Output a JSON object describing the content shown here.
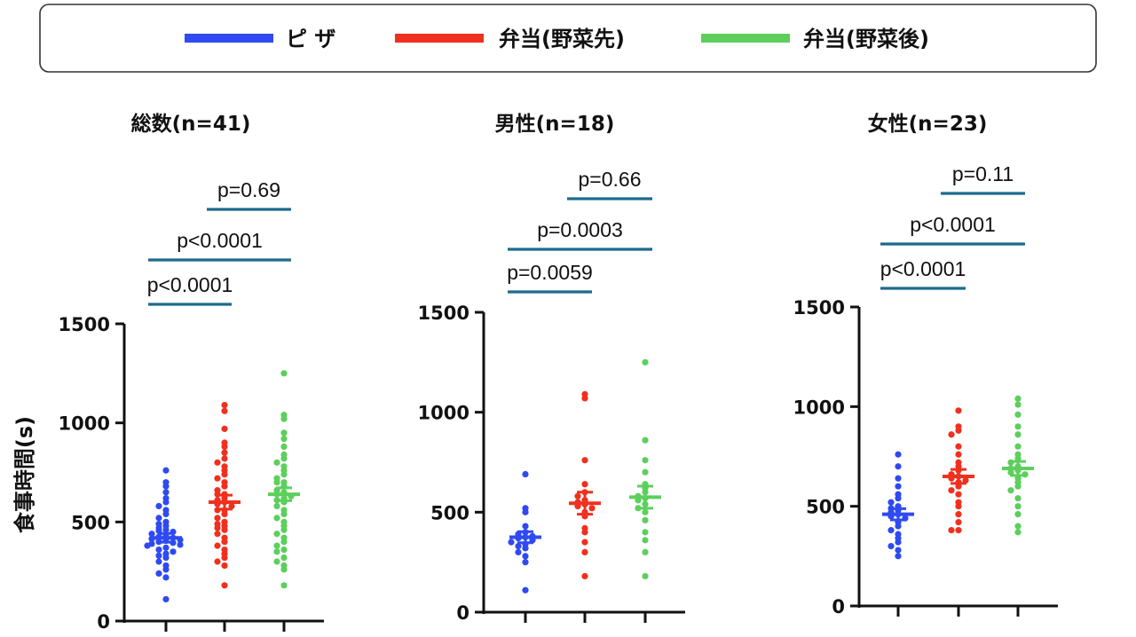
{
  "chart_data": {
    "type": "scatter",
    "ylabel": "食事時間(s)",
    "legend": {
      "placement": "top",
      "entries": [
        {
          "label": "ピ ザ",
          "color": "#2f4af0"
        },
        {
          "label": "弁当(野菜先)",
          "color": "#f0301e"
        },
        {
          "label": "弁当(野菜後)",
          "color": "#5ccf5c"
        }
      ]
    },
    "panels": [
      {
        "title": "総数(n=41)",
        "ylim": [
          0,
          1500
        ],
        "yticks": [
          0,
          500,
          1000,
          1500
        ],
        "groups": [
          {
            "name": "ピ ザ",
            "color": "#2f4af0",
            "mean": 420,
            "sem": 22,
            "values": [
              760,
              700,
              680,
              650,
              620,
              600,
              580,
              560,
              540,
              520,
              500,
              490,
              480,
              470,
              460,
              455,
              450,
              440,
              430,
              425,
              420,
              415,
              410,
              405,
              400,
              395,
              390,
              385,
              380,
              370,
              360,
              350,
              340,
              330,
              320,
              300,
              280,
              260,
              240,
              220,
              110
            ]
          },
          {
            "name": "弁当(野菜先)",
            "color": "#f0301e",
            "mean": 600,
            "sem": 35,
            "values": [
              1090,
              1060,
              970,
              900,
              880,
              850,
              820,
              800,
              780,
              760,
              740,
              720,
              700,
              680,
              660,
              640,
              620,
              610,
              600,
              590,
              580,
              560,
              540,
              520,
              500,
              490,
              480,
              470,
              460,
              440,
              420,
              400,
              380,
              360,
              340,
              320,
              300,
              280,
              180,
              560,
              640
            ]
          },
          {
            "name": "弁当(野菜後)",
            "color": "#5ccf5c",
            "mean": 640,
            "sem": 32,
            "values": [
              1250,
              1040,
              1020,
              950,
              920,
              880,
              840,
              820,
              800,
              780,
              760,
              740,
              720,
              700,
              680,
              660,
              650,
              640,
              630,
              620,
              600,
              580,
              560,
              540,
              520,
              500,
              480,
              460,
              440,
              420,
              400,
              380,
              360,
              350,
              320,
              300,
              280,
              260,
              180,
              700,
              610
            ]
          }
        ],
        "comparisons": [
          {
            "groups": [
              1,
              2
            ],
            "p": "p=0.69"
          },
          {
            "groups": [
              0,
              2
            ],
            "p": "p<0.0001"
          },
          {
            "groups": [
              0,
              1
            ],
            "p": "p<0.0001"
          }
        ]
      },
      {
        "title": "男性(n=18)",
        "ylim": [
          0,
          1500
        ],
        "yticks": [
          0,
          500,
          1000,
          1500
        ],
        "groups": [
          {
            "name": "ピ ザ",
            "color": "#2f4af0",
            "mean": 375,
            "sem": 28,
            "values": [
              690,
              520,
              500,
              430,
              400,
              390,
              380,
              375,
              370,
              360,
              350,
              340,
              330,
              320,
              300,
              280,
              250,
              110
            ]
          },
          {
            "name": "弁当(野菜先)",
            "color": "#f0301e",
            "mean": 545,
            "sem": 55,
            "values": [
              1090,
              1070,
              760,
              640,
              600,
              580,
              560,
              550,
              540,
              530,
              520,
              500,
              480,
              420,
              400,
              350,
              300,
              180
            ]
          },
          {
            "name": "弁当(野菜後)",
            "color": "#5ccf5c",
            "mean": 575,
            "sem": 55,
            "values": [
              1250,
              860,
              760,
              700,
              640,
              620,
              600,
              580,
              570,
              560,
              540,
              520,
              500,
              460,
              400,
              360,
              300,
              180
            ]
          }
        ],
        "comparisons": [
          {
            "groups": [
              1,
              2
            ],
            "p": "p=0.66"
          },
          {
            "groups": [
              0,
              2
            ],
            "p": "p=0.0003"
          },
          {
            "groups": [
              0,
              1
            ],
            "p": "p=0.0059"
          }
        ]
      },
      {
        "title": "女性(n=23)",
        "ylim": [
          0,
          1500
        ],
        "yticks": [
          0,
          500,
          1000,
          1500
        ],
        "groups": [
          {
            "name": "ピ ザ",
            "color": "#2f4af0",
            "mean": 460,
            "sem": 28,
            "values": [
              760,
              700,
              640,
              600,
              560,
              540,
              520,
              500,
              490,
              480,
              470,
              460,
              450,
              440,
              420,
              400,
              380,
              360,
              340,
              320,
              300,
              280,
              250
            ]
          },
          {
            "name": "弁当(野菜先)",
            "color": "#f0301e",
            "mean": 650,
            "sem": 35,
            "values": [
              980,
              900,
              880,
              860,
              800,
              760,
              720,
              700,
              680,
              660,
              650,
              640,
              630,
              620,
              600,
              580,
              560,
              520,
              500,
              460,
              420,
              380,
              380
            ]
          },
          {
            "name": "弁当(野菜後)",
            "color": "#5ccf5c",
            "mean": 690,
            "sem": 35,
            "values": [
              1040,
              1010,
              960,
              900,
              860,
              800,
              760,
              740,
              720,
              700,
              690,
              680,
              670,
              660,
              640,
              620,
              600,
              580,
              540,
              500,
              460,
              400,
              370
            ]
          }
        ],
        "comparisons": [
          {
            "groups": [
              1,
              2
            ],
            "p": "p=0.11"
          },
          {
            "groups": [
              0,
              2
            ],
            "p": "p<0.0001"
          },
          {
            "groups": [
              0,
              1
            ],
            "p": "p<0.0001"
          }
        ]
      }
    ]
  }
}
